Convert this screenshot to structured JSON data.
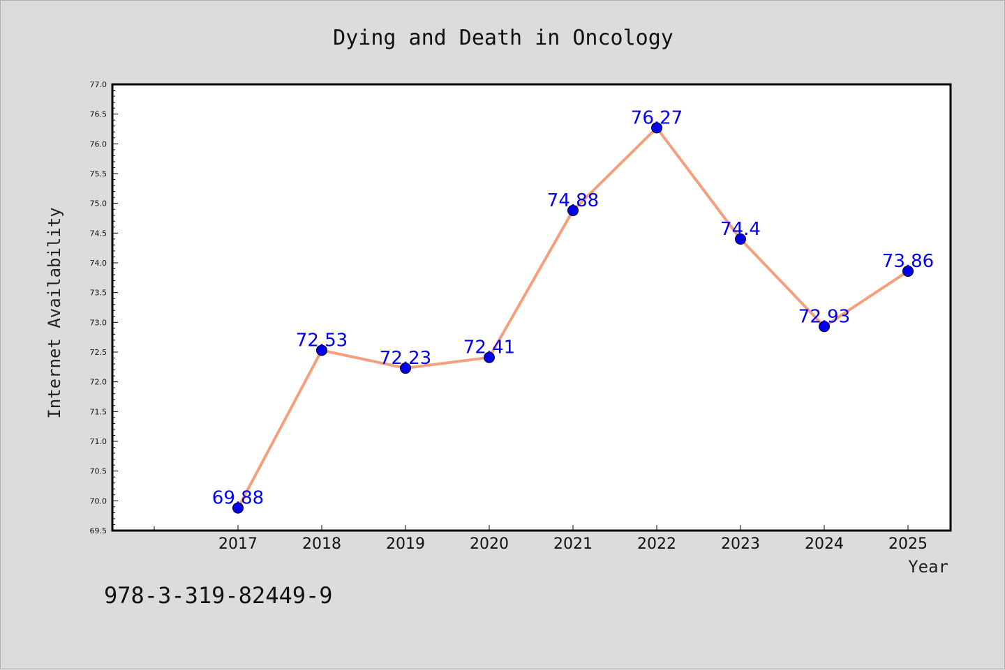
{
  "chart_data": {
    "type": "line",
    "title": "Dying and Death in Oncology",
    "xlabel": "Year",
    "ylabel": "Internet Availability",
    "categories": [
      "2017",
      "2018",
      "2019",
      "2020",
      "2021",
      "2022",
      "2023",
      "2024",
      "2025"
    ],
    "series": [
      {
        "values": [
          69.88,
          72.53,
          72.23,
          72.41,
          74.88,
          76.27,
          74.4,
          72.93,
          73.86
        ],
        "data_labels": [
          "69.88",
          "72.53",
          "72.23",
          "72.41",
          "74.88",
          "76.27",
          "74.4",
          "72.93",
          "73.86"
        ],
        "line_color": "#f4a07c",
        "marker_color": "#0000ee"
      }
    ],
    "ylim": [
      69.5,
      77.0
    ],
    "yticks": [
      "69.5",
      "70.0",
      "70.5",
      "71.0",
      "71.5",
      "72.0",
      "72.5",
      "73.0",
      "73.5",
      "74.0",
      "74.5",
      "75.0",
      "75.5",
      "76.0",
      "76.5",
      "77.0"
    ],
    "grid": false,
    "legend": "none"
  },
  "annotation": {
    "isbn": "978-3-319-82449-9"
  },
  "colors": {
    "background": "#dcdcdc",
    "plot_background": "#ffffff",
    "label_color": "#0000ee"
  }
}
